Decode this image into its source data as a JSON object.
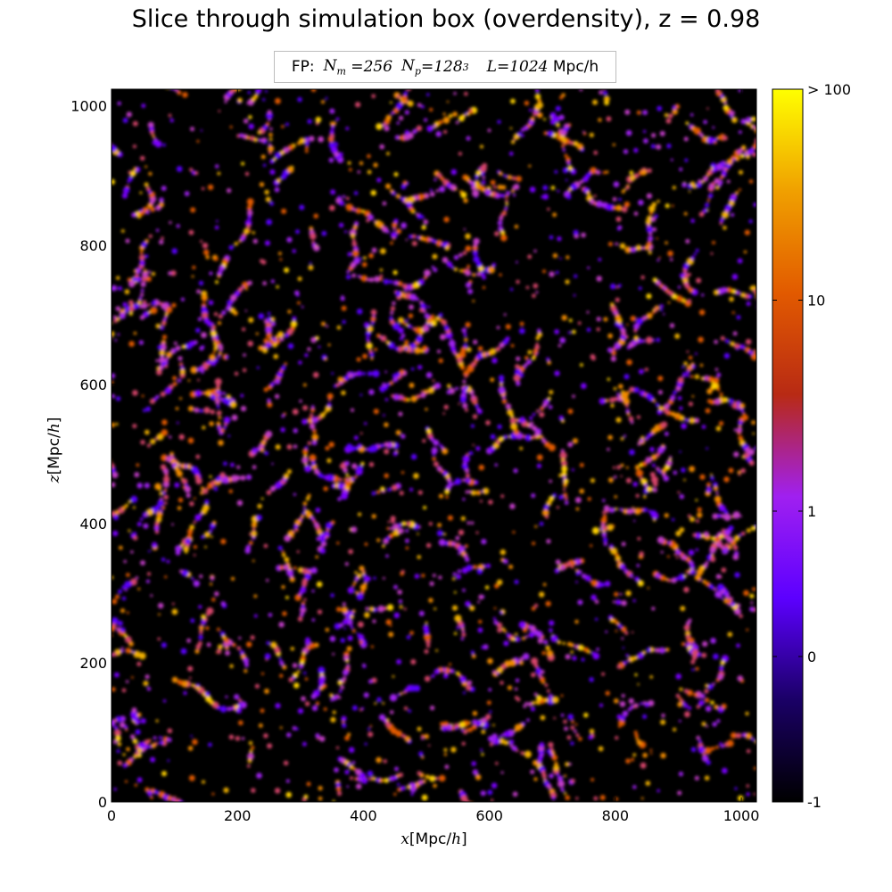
{
  "chart_data": {
    "type": "heatmap",
    "title": "Slice through simulation box (overdensity), z = 0.98",
    "legend": {
      "prefix": "FP:",
      "nm_symbol": "N_m",
      "nm_value": "256",
      "np_symbol": "N_p",
      "np_value": "128",
      "np_exponent": "3",
      "l_symbol": "L",
      "l_value": "1024",
      "l_unit": "Mpc/h"
    },
    "xlabel": {
      "var": "x",
      "unit": "Mpc/",
      "unit_var": "h"
    },
    "ylabel": {
      "var": "z",
      "unit": "Mpc/",
      "unit_var": "h"
    },
    "xlim": [
      0,
      1024
    ],
    "ylim": [
      0,
      1024
    ],
    "x_ticks": [
      0,
      200,
      400,
      600,
      800,
      1000
    ],
    "y_ticks": [
      0,
      200,
      400,
      600,
      800,
      1000
    ],
    "colorbar": {
      "scale": "symlog",
      "ticks": [
        {
          "value": -1,
          "label": "-1"
        },
        {
          "value": 0,
          "label": "0"
        },
        {
          "value": 1,
          "label": "1"
        },
        {
          "value": 10,
          "label": "10"
        },
        {
          "value": 100,
          "label": "> 100"
        }
      ],
      "colormap": "gnuplot2",
      "colors": [
        "#000000",
        "#1a0066",
        "#5c00ff",
        "#a020f0",
        "#b82a14",
        "#e25a00",
        "#f0a000",
        "#ffff00"
      ]
    },
    "grid": false
  }
}
